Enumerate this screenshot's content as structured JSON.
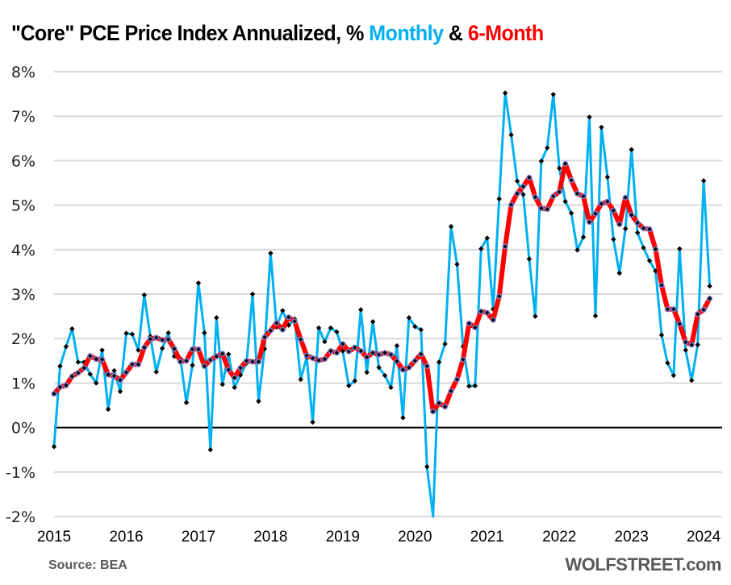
{
  "title": {
    "prefix": "\"Core\" PCE Price Index Annualized, % ",
    "monthly_word": "Monthly",
    "amp": " & ",
    "sixmonth_word": "6-Month"
  },
  "footer": {
    "source": "Source: BEA",
    "brand": "WOLFSTREET.com"
  },
  "colors": {
    "monthly": "#00b0f0",
    "sixmonth": "#ff0000",
    "marker": "#000000",
    "sixmonth_marker_ring": "#7f7fd0",
    "grid": "#d9d9d9",
    "zero_line": "#000000"
  },
  "chart_data": {
    "type": "line",
    "title": "\"Core\" PCE Price Index Annualized, % Monthly & 6-Month",
    "xlabel": "",
    "ylabel": "",
    "x_start": "2015-01",
    "x_end": "2024-03",
    "ylim": [
      -2,
      8
    ],
    "yticks": [
      8,
      7,
      6,
      5,
      4,
      3,
      2,
      1,
      0,
      -1,
      -2
    ],
    "ytick_labels": [
      "8%",
      "7%",
      "6%",
      "5%",
      "4%",
      "3%",
      "2%",
      "1%",
      "0%",
      "-1%",
      "-2%"
    ],
    "xtick_labels": [
      "2015",
      "2016",
      "2017",
      "2018",
      "2019",
      "2020",
      "2021",
      "2022",
      "2023",
      "2024"
    ],
    "grid": true,
    "legend": "in-title",
    "series": [
      {
        "name": "Monthly",
        "values": [
          -0.43,
          1.38,
          1.82,
          2.22,
          1.47,
          1.47,
          1.2,
          1.0,
          1.74,
          0.41,
          1.28,
          0.81,
          2.12,
          2.1,
          1.74,
          2.98,
          2.05,
          1.25,
          1.78,
          2.13,
          1.6,
          1.55,
          0.56,
          1.4,
          3.25,
          2.13,
          -0.5,
          2.47,
          0.97,
          1.65,
          0.9,
          1.18,
          1.45,
          3.0,
          0.59,
          1.77,
          3.92,
          2.26,
          2.63,
          2.3,
          2.44,
          1.08,
          1.58,
          0.12,
          2.24,
          1.93,
          2.24,
          2.15,
          1.72,
          0.94,
          1.05,
          2.65,
          1.24,
          2.38,
          1.35,
          1.17,
          0.9,
          1.84,
          0.22,
          2.47,
          2.27,
          2.2,
          -0.88,
          -3.5,
          1.47,
          1.88,
          4.52,
          3.67,
          1.82,
          0.93,
          0.94,
          4.02,
          4.26,
          2.66,
          5.14,
          7.52,
          6.58,
          5.54,
          5.24,
          3.79,
          2.5,
          5.99,
          6.29,
          7.49,
          5.83,
          5.08,
          4.82,
          3.99,
          4.28,
          6.98,
          2.51,
          6.75,
          5.63,
          4.23,
          3.47,
          4.47,
          6.25,
          4.38,
          4.04,
          3.75,
          3.52,
          2.08,
          1.45,
          1.17,
          4.02,
          1.74,
          1.06,
          1.86,
          5.55,
          3.18
        ]
      },
      {
        "name": "6-Month",
        "values": [
          0.76,
          0.91,
          0.95,
          1.15,
          1.23,
          1.34,
          1.61,
          1.54,
          1.53,
          1.19,
          1.16,
          1.07,
          1.24,
          1.42,
          1.42,
          1.8,
          1.99,
          2.02,
          1.97,
          1.98,
          1.77,
          1.48,
          1.5,
          1.76,
          1.76,
          1.38,
          1.52,
          1.6,
          1.66,
          1.3,
          1.12,
          1.34,
          1.5,
          1.48,
          1.48,
          2.03,
          2.18,
          2.35,
          2.2,
          2.48,
          2.39,
          1.98,
          1.62,
          1.56,
          1.51,
          1.54,
          1.72,
          1.68,
          1.88,
          1.71,
          1.8,
          1.72,
          1.58,
          1.68,
          1.64,
          1.68,
          1.64,
          1.49,
          1.3,
          1.35,
          1.5,
          1.65,
          1.38,
          0.36,
          0.55,
          0.47,
          0.82,
          1.08,
          1.53,
          2.34,
          2.25,
          2.61,
          2.58,
          2.42,
          2.95,
          4.07,
          5.01,
          5.26,
          5.42,
          5.62,
          5.18,
          4.93,
          4.91,
          5.2,
          5.3,
          5.93,
          5.56,
          5.26,
          5.2,
          4.62,
          4.81,
          5.03,
          5.08,
          4.88,
          4.57,
          5.17,
          4.78,
          4.6,
          4.48,
          4.46,
          4.01,
          3.2,
          2.66,
          2.66,
          2.33,
          1.92,
          1.86,
          2.55,
          2.65,
          2.9
        ]
      }
    ]
  }
}
